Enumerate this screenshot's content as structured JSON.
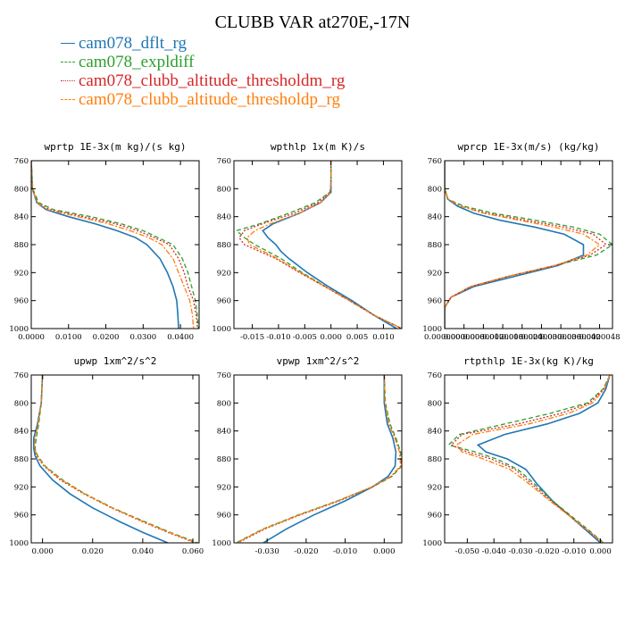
{
  "title": "CLUBB VAR at270E,-17N",
  "colors": {
    "dflt": "#1f77b4",
    "expldiff": "#2ca02c",
    "thresholdm": "#d62728",
    "thresholdp": "#ff7f0e"
  },
  "legend": [
    {
      "name": "cam078_dflt_rg",
      "color": "#1f77b4",
      "dash": "solid"
    },
    {
      "name": "cam078_expldiff",
      "color": "#2ca02c",
      "dash": "dash"
    },
    {
      "name": "cam078_clubb_altitude_thresholdm_rg",
      "color": "#d62728",
      "dash": "dot"
    },
    {
      "name": "cam078_clubb_altitude_thresholdp_rg",
      "color": "#ff7f0e",
      "dash": "dashdot"
    }
  ],
  "chart_data": [
    {
      "type": "line",
      "title": "wprtp  1E-3x(m kg)/(s kg)",
      "xlim": [
        0.0,
        0.045
      ],
      "xticks": [
        0.0,
        0.01,
        0.02,
        0.03,
        0.04
      ],
      "xticklabels": [
        "0.0000",
        "0.0100",
        "0.0200",
        "0.0300",
        "0.0400"
      ],
      "ylim": [
        760,
        1000
      ],
      "yticks": [
        760,
        800,
        840,
        880,
        920,
        960,
        1000
      ],
      "y": [
        760,
        800,
        820,
        830,
        840,
        850,
        860,
        870,
        880,
        900,
        920,
        940,
        960,
        980,
        1000
      ],
      "series": [
        {
          "name": "cam078_dflt_rg",
          "x": [
            0.0,
            0.0003,
            0.0015,
            0.004,
            0.01,
            0.017,
            0.023,
            0.028,
            0.031,
            0.0345,
            0.0365,
            0.038,
            0.039,
            0.0393,
            0.0395
          ]
        },
        {
          "name": "cam078_expldiff",
          "x": [
            0.0,
            0.0004,
            0.002,
            0.006,
            0.016,
            0.024,
            0.03,
            0.034,
            0.038,
            0.0405,
            0.042,
            0.043,
            0.044,
            0.0445,
            0.0448
          ]
        },
        {
          "name": "cam078_clubb_altitude_thresholdm_rg",
          "x": [
            0.0,
            0.0003,
            0.0017,
            0.005,
            0.014,
            0.0225,
            0.0285,
            0.033,
            0.037,
            0.0395,
            0.041,
            0.042,
            0.0435,
            0.0442,
            0.0446
          ]
        },
        {
          "name": "cam078_clubb_altitude_thresholdp_rg",
          "x": [
            0.0,
            0.0003,
            0.0016,
            0.0045,
            0.0125,
            0.0205,
            0.0265,
            0.0315,
            0.035,
            0.038,
            0.0395,
            0.041,
            0.0425,
            0.0432,
            0.0435
          ]
        }
      ]
    },
    {
      "type": "line",
      "title": "wpthlp  1x(m K)/s",
      "xlim": [
        -0.0185,
        0.0135
      ],
      "xticks": [
        -0.015,
        -0.01,
        -0.005,
        0.0,
        0.005,
        0.01
      ],
      "xticklabels": [
        "-0.015",
        "-0.010",
        "-0.005",
        "0.000",
        "0.005",
        "0.010"
      ],
      "ylim": [
        760,
        1000
      ],
      "yticks": [
        760,
        800,
        840,
        880,
        920,
        960,
        1000
      ],
      "y": [
        760,
        790,
        805,
        820,
        835,
        850,
        860,
        870,
        880,
        890,
        900,
        920,
        940,
        960,
        980,
        1000
      ],
      "series": [
        {
          "name": "cam078_dflt_rg",
          "x": [
            0.0,
            0.0,
            0.0,
            -0.002,
            -0.006,
            -0.011,
            -0.013,
            -0.012,
            -0.0105,
            -0.0095,
            -0.008,
            -0.0045,
            -0.0005,
            0.004,
            0.008,
            0.0125
          ]
        },
        {
          "name": "cam078_expldiff",
          "x": [
            0.0,
            0.0,
            -0.0002,
            -0.003,
            -0.008,
            -0.0135,
            -0.018,
            -0.0165,
            -0.0145,
            -0.012,
            -0.0095,
            -0.0055,
            -0.001,
            0.0035,
            0.008,
            0.0135
          ]
        },
        {
          "name": "cam078_clubb_altitude_thresholdm_rg",
          "x": [
            0.0,
            0.0,
            -0.0002,
            -0.0025,
            -0.007,
            -0.013,
            -0.0165,
            -0.0175,
            -0.0165,
            -0.0135,
            -0.0105,
            -0.006,
            -0.0012,
            0.0035,
            0.008,
            0.0135
          ]
        },
        {
          "name": "cam078_clubb_altitude_thresholdp_rg",
          "x": [
            0.0,
            0.0,
            -0.0001,
            -0.002,
            -0.006,
            -0.0115,
            -0.0145,
            -0.016,
            -0.0155,
            -0.0128,
            -0.0102,
            -0.0058,
            -0.0011,
            0.0035,
            0.008,
            0.0135
          ]
        }
      ]
    },
    {
      "type": "line",
      "title": "wprcp  1E-3x(m/s) (kg/kg)",
      "xlim": [
        0.0,
        5.2e-06
      ],
      "xticks": [
        0.0,
        6e-07,
        1.2e-06,
        1.8e-06,
        2.4e-06,
        3e-06,
        3.6e-06,
        4.2e-06,
        4.8e-06
      ],
      "xticklabels": [
        "0.0000000",
        "0.0000006",
        "0.0000012",
        "0.0000018",
        "0.0000024",
        "0.0000030",
        "0.0000036",
        "0.0000042",
        "0.0000048"
      ],
      "ylim": [
        760,
        1000
      ],
      "yticks": [
        760,
        800,
        840,
        880,
        920,
        960,
        1000
      ],
      "y": [
        760,
        800,
        815,
        825,
        835,
        845,
        855,
        865,
        880,
        895,
        910,
        925,
        940,
        955,
        970,
        1000
      ],
      "series": [
        {
          "name": "cam078_dflt_rg",
          "x": [
            0.0,
            0.0,
            1e-07,
            4e-07,
            9e-07,
            1.7e-06,
            2.8e-06,
            3.7e-06,
            4.3e-06,
            4.3e-06,
            3.5e-06,
            2.2e-06,
            9e-07,
            2e-07,
            0.0,
            0.0
          ]
        },
        {
          "name": "cam078_expldiff",
          "x": [
            0.0,
            0.0,
            1e-07,
            6e-07,
            1.5e-06,
            2.8e-06,
            4e-06,
            4.8e-06,
            5.2e-06,
            4.7e-06,
            3.4e-06,
            2e-06,
            8e-07,
            2e-07,
            0.0,
            0.0
          ]
        },
        {
          "name": "cam078_clubb_altitude_thresholdm_rg",
          "x": [
            0.0,
            0.0,
            1e-07,
            5e-07,
            1.3e-06,
            2.5e-06,
            3.7e-06,
            4.6e-06,
            5e-06,
            4.5e-06,
            3.4e-06,
            2e-06,
            8e-07,
            2e-07,
            0.0,
            0.0
          ]
        },
        {
          "name": "cam078_clubb_altitude_thresholdp_rg",
          "x": [
            0.0,
            0.0,
            1e-07,
            5e-07,
            1.2e-06,
            2.3e-06,
            3.4e-06,
            4.3e-06,
            4.8e-06,
            4.4e-06,
            3.4e-06,
            2e-06,
            8e-07,
            2e-07,
            0.0,
            0.0
          ]
        }
      ]
    },
    {
      "type": "line",
      "title": "upwp  1xm^2/s^2",
      "xlim": [
        -0.0045,
        0.0625
      ],
      "xticks": [
        0.0,
        0.02,
        0.04,
        0.06
      ],
      "xticklabels": [
        "0.000",
        "0.020",
        "0.040",
        "0.060"
      ],
      "ylim": [
        760,
        1000
      ],
      "yticks": [
        760,
        800,
        840,
        880,
        920,
        960,
        1000
      ],
      "y": [
        760,
        800,
        830,
        850,
        865,
        875,
        890,
        910,
        930,
        950,
        970,
        985,
        1000
      ],
      "series": [
        {
          "name": "cam078_dflt_rg",
          "x": [
            0.0,
            -0.0005,
            -0.002,
            -0.0035,
            -0.0035,
            -0.003,
            -0.001,
            0.004,
            0.011,
            0.02,
            0.031,
            0.04,
            0.05
          ]
        },
        {
          "name": "cam078_expldiff",
          "x": [
            0.0,
            -0.0005,
            -0.0015,
            -0.0025,
            -0.003,
            -0.002,
            0.001,
            0.008,
            0.017,
            0.028,
            0.041,
            0.051,
            0.062
          ]
        },
        {
          "name": "cam078_clubb_altitude_thresholdm_rg",
          "x": [
            0.0,
            -0.0005,
            -0.0018,
            -0.003,
            -0.0032,
            -0.0025,
            0.0005,
            0.007,
            0.0165,
            0.0275,
            0.04,
            0.05,
            0.061
          ]
        },
        {
          "name": "cam078_clubb_altitude_thresholdp_rg",
          "x": [
            0.0,
            -0.0005,
            -0.0018,
            -0.003,
            -0.0032,
            -0.0022,
            0.0007,
            0.0075,
            0.0168,
            0.0278,
            0.0405,
            0.0505,
            0.0615
          ]
        }
      ]
    },
    {
      "type": "line",
      "title": "vpwp  1xm^2/s^2",
      "xlim": [
        -0.0385,
        0.0045
      ],
      "xticks": [
        -0.03,
        -0.02,
        -0.01,
        0.0
      ],
      "xticklabels": [
        "-0.030",
        "-0.020",
        "-0.010",
        "0.000"
      ],
      "ylim": [
        760,
        1000
      ],
      "yticks": [
        760,
        800,
        840,
        880,
        920,
        960,
        1000
      ],
      "y": [
        760,
        800,
        830,
        850,
        870,
        890,
        905,
        920,
        940,
        960,
        980,
        1000
      ],
      "series": [
        {
          "name": "cam078_dflt_rg",
          "x": [
            0.0,
            0.0,
            0.0008,
            0.0022,
            0.003,
            0.0028,
            0.001,
            -0.003,
            -0.01,
            -0.018,
            -0.025,
            -0.031
          ]
        },
        {
          "name": "cam078_expldiff",
          "x": [
            0.0,
            0.0003,
            0.0015,
            0.003,
            0.0042,
            0.0045,
            0.002,
            -0.003,
            -0.012,
            -0.022,
            -0.031,
            -0.038
          ]
        },
        {
          "name": "cam078_clubb_altitude_thresholdm_rg",
          "x": [
            0.0,
            0.0002,
            0.0012,
            0.0028,
            0.004,
            0.0043,
            0.0018,
            -0.003,
            -0.0115,
            -0.0215,
            -0.0305,
            -0.0375
          ]
        },
        {
          "name": "cam078_clubb_altitude_thresholdp_rg",
          "x": [
            0.0,
            0.0002,
            0.0012,
            0.0027,
            0.0039,
            0.0042,
            0.0017,
            -0.0032,
            -0.0118,
            -0.0218,
            -0.0308,
            -0.0378
          ]
        }
      ]
    },
    {
      "type": "line",
      "title": "rtpthlp  1E-3x(kg K)/kg",
      "xlim": [
        -0.0585,
        0.0045
      ],
      "xticks": [
        -0.05,
        -0.04,
        -0.03,
        -0.02,
        -0.01,
        0.0
      ],
      "xticklabels": [
        "-0.050",
        "-0.040",
        "-0.030",
        "-0.020",
        "-0.010",
        "0.000"
      ],
      "ylim": [
        760,
        1000
      ],
      "yticks": [
        760,
        800,
        840,
        880,
        920,
        960,
        1000
      ],
      "y": [
        760,
        780,
        800,
        815,
        830,
        845,
        860,
        870,
        880,
        895,
        915,
        940,
        960,
        980,
        1000
      ],
      "series": [
        {
          "name": "cam078_dflt_rg",
          "x": [
            0.0035,
            0.002,
            -0.001,
            -0.008,
            -0.02,
            -0.036,
            -0.046,
            -0.043,
            -0.035,
            -0.028,
            -0.024,
            -0.018,
            -0.012,
            -0.006,
            0.0
          ]
        },
        {
          "name": "cam078_expldiff",
          "x": [
            0.0035,
            0.001,
            -0.005,
            -0.019,
            -0.036,
            -0.053,
            -0.057,
            -0.047,
            -0.039,
            -0.031,
            -0.025,
            -0.018,
            -0.0115,
            -0.005,
            0.0012
          ]
        },
        {
          "name": "cam078_clubb_altitude_thresholdm_rg",
          "x": [
            0.0035,
            0.0012,
            -0.004,
            -0.015,
            -0.031,
            -0.052,
            -0.056,
            -0.05,
            -0.041,
            -0.032,
            -0.026,
            -0.0185,
            -0.012,
            -0.0055,
            0.001
          ]
        },
        {
          "name": "cam078_clubb_altitude_thresholdp_rg",
          "x": [
            0.0035,
            0.0015,
            -0.003,
            -0.012,
            -0.027,
            -0.048,
            -0.054,
            -0.052,
            -0.044,
            -0.034,
            -0.027,
            -0.019,
            -0.0122,
            -0.0055,
            0.001
          ]
        }
      ]
    }
  ]
}
